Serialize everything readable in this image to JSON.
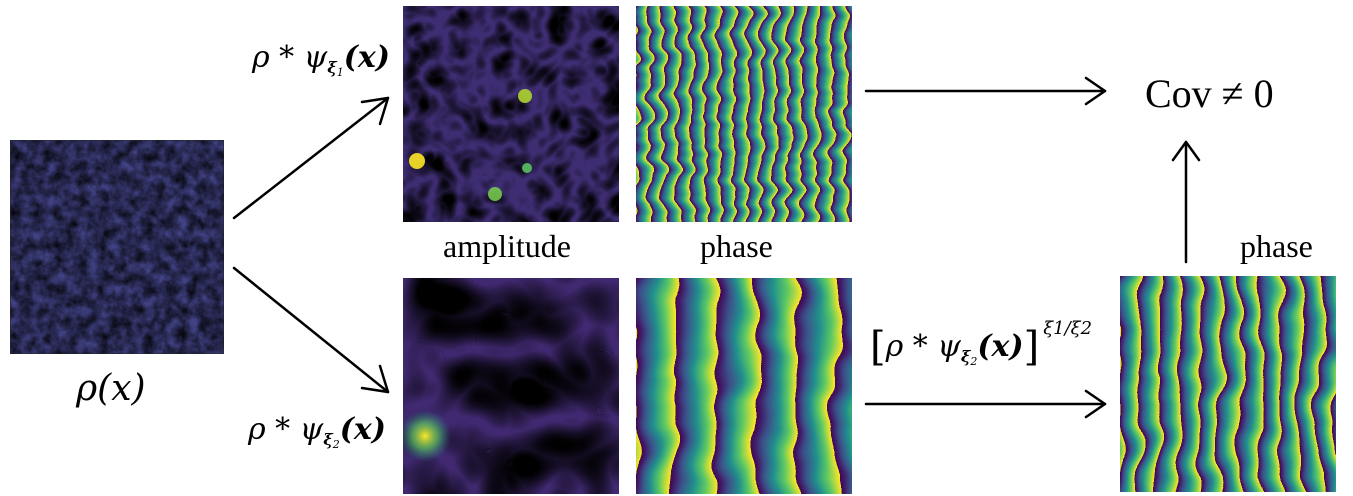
{
  "labels": {
    "rho_x": "ρ(x)",
    "branch1_prefix": "ρ * ψ",
    "branch1_sub": "ξ",
    "branch1_subsub": "1",
    "branch1_arg": "(x)",
    "branch2_prefix": "ρ * ψ",
    "branch2_sub": "ξ",
    "branch2_subsub": "2",
    "branch2_arg": "(x)",
    "amplitude": "amplitude",
    "phase_top": "phase",
    "phase_right": "phase",
    "power_open": "[",
    "power_expr": "ρ * ψ",
    "power_sub": "ξ",
    "power_subsub": "2",
    "power_arg": "(x)",
    "power_close": "]",
    "power_exponent": "ξ1/ξ2",
    "cov": "Cov ≠ 0"
  },
  "colors": {
    "viridis_dark": "#440154",
    "viridis_blue": "#3b528b",
    "viridis_teal": "#21918c",
    "viridis_green": "#5ec962",
    "viridis_yellow": "#fde725"
  }
}
